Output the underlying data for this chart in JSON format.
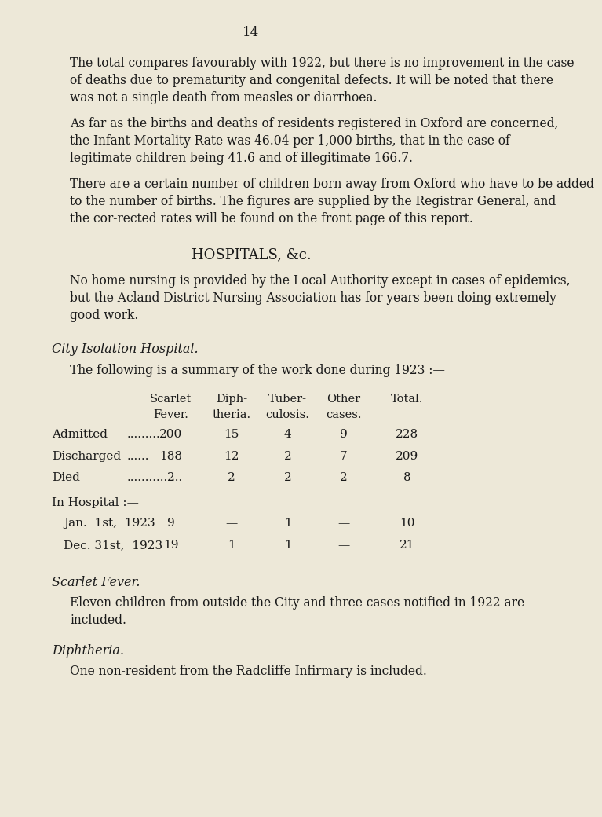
{
  "bg_color": "#ede8d8",
  "text_color": "#1a1a1a",
  "page_number": "14",
  "paragraphs": [
    {
      "text": "The total compares favourably with 1922, but there is no improvement in the case of deaths due to prematurity and congenital defects.   It will be noted that there was not a single death from measles or diarrhoea.",
      "indent": true,
      "style": "body"
    },
    {
      "text": "As far as the births and deaths of residents registered in Oxford are concerned, the Infant Mortality Rate was 46.04 per 1,000 births, that in the case of legitimate children being 41.6 and of illegitimate 166.7.",
      "indent": true,
      "style": "body"
    },
    {
      "text": "There are a certain number of children born away from Oxford who have to be added to the number of births.   The figures are supplied by the Registrar General, and the cor­rected rates will be found on the front page of this report.",
      "indent": true,
      "style": "body"
    },
    {
      "text": "HOSPITALS, &c.",
      "indent": false,
      "style": "heading_center"
    },
    {
      "text": "No home nursing is provided by the Local Authority except in cases of epidemics, but the Acland District Nursing Association has for years been doing extremely good work.",
      "indent": true,
      "style": "body"
    },
    {
      "text": "City Isolation Hospital.",
      "indent": false,
      "style": "italic_heading"
    },
    {
      "text": "The following is a summary of the work done during 1923 :—",
      "indent": true,
      "style": "body"
    }
  ],
  "table_headers": [
    {
      "line1": "Scarlet",
      "line2": "Fever."
    },
    {
      "line1": "Diph-",
      "line2": "theria."
    },
    {
      "line1": "Tuber-",
      "line2": "culosis."
    },
    {
      "line1": "Other",
      "line2": "cases."
    },
    {
      "line1": "Total.",
      "line2": ""
    }
  ],
  "table_rows": [
    {
      "label": "Admitted",
      "dots": ".........",
      "values": [
        "200",
        "15",
        "4",
        "9",
        "228"
      ]
    },
    {
      "label": "Discharged",
      "dots": "......",
      "values": [
        "188",
        "12",
        "2",
        "7",
        "209"
      ]
    },
    {
      "label": "Died",
      "dots": "...............",
      "values": [
        "2",
        "2",
        "2",
        "2",
        "8"
      ]
    }
  ],
  "in_hospital_label": "In Hospital :—",
  "in_hospital_rows": [
    {
      "label": "Jan.  1st,  1923",
      "values": [
        "9",
        "—",
        "1",
        "—",
        "10"
      ]
    },
    {
      "label": "Dec. 31st,  1923",
      "values": [
        "19",
        "1",
        "1",
        "—",
        "21"
      ]
    }
  ],
  "footer_sections": [
    {
      "heading": "Scarlet Fever.",
      "body": "Eleven children from outside the City and three cases notified in 1922 are included."
    },
    {
      "heading": "Diphtheria.",
      "body": "One non-resident from the Radcliffe Infirmary is included."
    }
  ]
}
